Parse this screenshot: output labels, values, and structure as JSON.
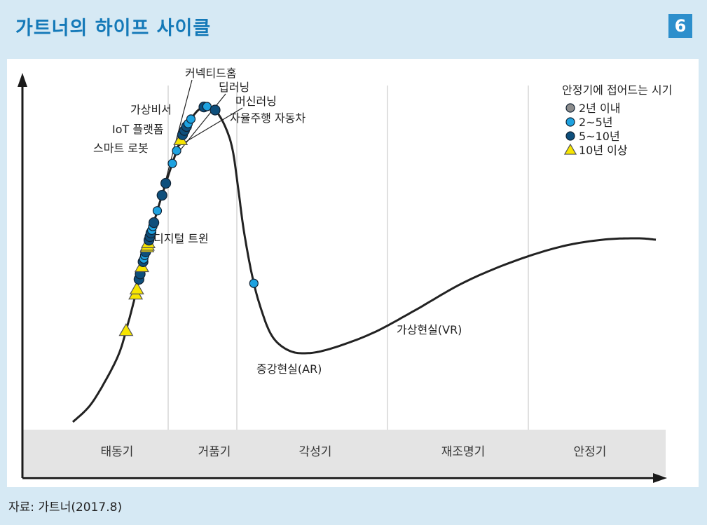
{
  "header": {
    "title": "가트너의 하이프 사이클",
    "badge": "6"
  },
  "source": "자료: 가트너(2017.8)",
  "colors": {
    "curve": "#222222",
    "under_2y": "#8c8c8c",
    "y2_5": "#1ea2e0",
    "y5_10": "#0e4f7c",
    "over_10y": "#f7e500",
    "phase_band": "#e4e4e4",
    "divider": "#d5d5d5"
  },
  "chart_data": {
    "type": "line",
    "title": "가트너의 하이프 사이클",
    "xlabel": "",
    "ylabel": "",
    "phases": [
      "태동기",
      "거품기",
      "각성기",
      "재조명기",
      "안정기"
    ],
    "legend": {
      "title": "안정기에 접어드는 시기",
      "position": "top-right",
      "items": [
        {
          "label": "2년 이내",
          "marker": "circle",
          "color": "#8c8c8c"
        },
        {
          "label": "2~5년",
          "marker": "circle",
          "color": "#1ea2e0"
        },
        {
          "label": "5~10년",
          "marker": "circle",
          "color": "#0e4f7c"
        },
        {
          "label": "10년 이상",
          "marker": "triangle",
          "color": "#f7e500"
        }
      ]
    },
    "annotations": [
      {
        "label": "커넥티드홈",
        "t": 0.276,
        "category": "5~10년"
      },
      {
        "label": "딥러닝",
        "t": 0.294,
        "category": "2~5년"
      },
      {
        "label": "머신러닝",
        "t": 0.305,
        "category": "2~5년"
      },
      {
        "label": "자율주행 자동차",
        "t": 0.315,
        "category": "10년 이상"
      },
      {
        "label": "가상비서",
        "t": 0.265,
        "category": "5~10년"
      },
      {
        "label": "IoT 플랫폼",
        "t": 0.25,
        "category": "2~5년"
      },
      {
        "label": "스마트 로봇",
        "t": 0.238,
        "category": "5~10년"
      },
      {
        "label": "디지털 트윈",
        "t": 0.205,
        "category": "5~10년"
      },
      {
        "label": "증강현실(AR)",
        "t": 0.417,
        "category": "5~10년"
      },
      {
        "label": "가상현실(VR)",
        "t": 0.587,
        "category": "2~5년"
      }
    ],
    "points": [
      {
        "t": 0.123,
        "category": "10년 이상"
      },
      {
        "t": 0.163,
        "category": "10년 이상"
      },
      {
        "t": 0.168,
        "category": "10년 이상"
      },
      {
        "t": 0.177,
        "category": "5~10년"
      },
      {
        "t": 0.182,
        "category": "5~10년"
      },
      {
        "t": 0.189,
        "category": "10년 이상"
      },
      {
        "t": 0.194,
        "category": "5~10년"
      },
      {
        "t": 0.197,
        "category": "2~5년"
      },
      {
        "t": 0.201,
        "category": "2~5년"
      },
      {
        "t": 0.205,
        "category": "5~10년"
      },
      {
        "t": 0.211,
        "category": "10년 이상"
      },
      {
        "t": 0.213,
        "category": "10년 이상"
      },
      {
        "t": 0.216,
        "category": "10년 이상"
      },
      {
        "t": 0.219,
        "category": "5~10년"
      },
      {
        "t": 0.223,
        "category": "5~10년"
      },
      {
        "t": 0.227,
        "category": "5~10년"
      },
      {
        "t": 0.23,
        "category": "2~5년"
      },
      {
        "t": 0.234,
        "category": "2~5년"
      },
      {
        "t": 0.238,
        "category": "5~10년"
      },
      {
        "t": 0.25,
        "category": "2~5년"
      },
      {
        "t": 0.265,
        "category": "5~10년"
      },
      {
        "t": 0.276,
        "category": "5~10년"
      },
      {
        "t": 0.294,
        "category": "2~5년"
      },
      {
        "t": 0.305,
        "category": "2~5년"
      },
      {
        "t": 0.315,
        "category": "10년 이상"
      },
      {
        "t": 0.32,
        "category": "5~10년"
      },
      {
        "t": 0.325,
        "category": "5~10년"
      },
      {
        "t": 0.33,
        "category": "5~10년"
      },
      {
        "t": 0.334,
        "category": "2~5년"
      },
      {
        "t": 0.341,
        "category": "2~5년"
      },
      {
        "t": 0.378,
        "category": "5~10년"
      },
      {
        "t": 0.388,
        "category": "2~5년"
      },
      {
        "t": 0.417,
        "category": "5~10년"
      },
      {
        "t": 0.587,
        "category": "2~5년"
      }
    ]
  }
}
